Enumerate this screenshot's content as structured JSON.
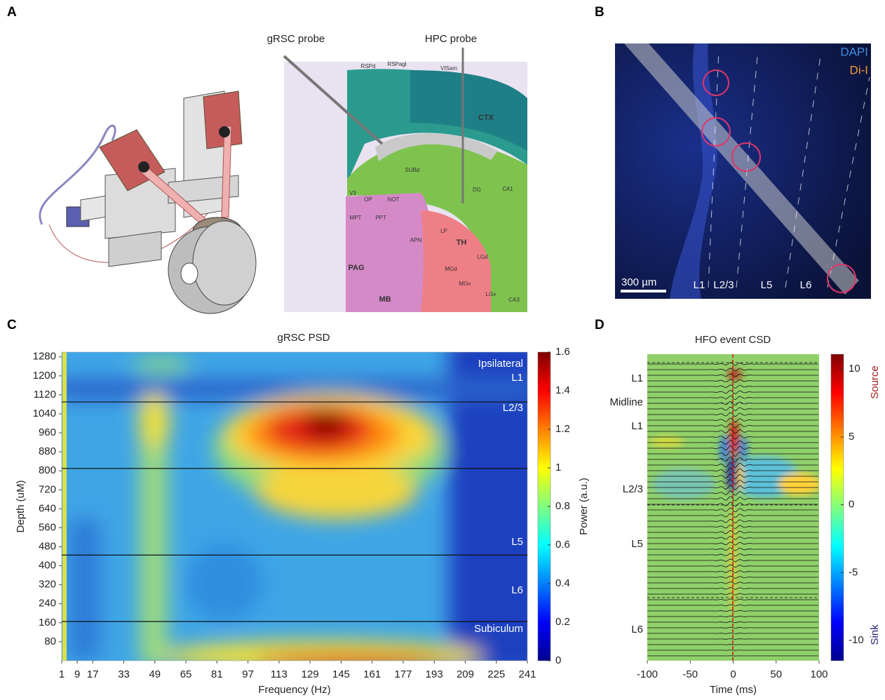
{
  "panel_labels": [
    "A",
    "B",
    "C",
    "D"
  ],
  "panel_a": {
    "probe_labels": [
      "gRSC probe",
      "HPC probe"
    ],
    "atlas_labels": [
      "RSPd",
      "RSPagl",
      "VISam",
      "CTX",
      "SUBd",
      "DG",
      "CA1",
      "V3",
      "OP",
      "NOT",
      "MPT",
      "PPT",
      "APN",
      "LP",
      "TH",
      "PAG",
      "MB",
      "LGd",
      "MGd",
      "MGv",
      "LGv",
      "CA3"
    ]
  },
  "panel_b": {
    "stain_labels": [
      "DAPI",
      "Di-I"
    ],
    "scale_bar": "300 µm",
    "layer_labels": [
      "L1",
      "L2/3",
      "L5",
      "L6"
    ]
  },
  "chart_data": [
    {
      "type": "heatmap",
      "title": "gRSC PSD",
      "x_label": "Frequency (Hz)",
      "y_label": "Depth (uM)",
      "xlim": [
        1,
        241
      ],
      "xticks": [
        1,
        9,
        17,
        33,
        49,
        65,
        81,
        97,
        113,
        129,
        145,
        161,
        177,
        193,
        209,
        225,
        241
      ],
      "ylim": [
        0,
        1300
      ],
      "yticks": [
        80,
        160,
        240,
        320,
        400,
        480,
        560,
        640,
        720,
        800,
        880,
        960,
        1040,
        1120,
        1200,
        1280
      ],
      "colormap": "jet",
      "clim": [
        0,
        1.6
      ],
      "colorbar_ticks": [
        0,
        0.2,
        0.4,
        0.6,
        0.8,
        1,
        1.2,
        1.4,
        1.6
      ],
      "colorbar_label": "Power (a.u.)",
      "boundaries": [
        1090,
        810,
        445,
        165
      ],
      "region_labels": [
        "Ipsilateral",
        "L1",
        "L2/3",
        "L5",
        "L6",
        "Subiculum"
      ]
    },
    {
      "type": "heatmap",
      "title": "HFO event CSD",
      "x_label": "Time (ms)",
      "xlim": [
        -100,
        100
      ],
      "xticks": [
        -100,
        -50,
        0,
        50,
        100
      ],
      "colormap": "jet",
      "clim": [
        -11.5,
        11.1
      ],
      "colorbar_ticks": [
        -10,
        -5,
        0,
        5,
        10
      ],
      "colorbar_top_label": "Source",
      "colorbar_bottom_label": "Sink",
      "layer_labels": [
        "L1",
        "Midline",
        "L1",
        "L2/3",
        "L5",
        "L6"
      ]
    }
  ]
}
